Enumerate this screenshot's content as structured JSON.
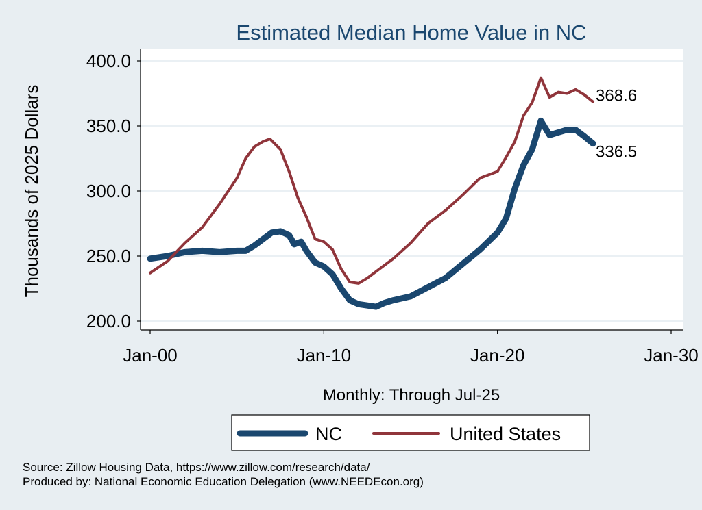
{
  "chart_data": {
    "type": "line",
    "title": "Estimated Median Home Value in NC",
    "xlabel": "Monthly: Through Jul-25",
    "ylabel": "Thousands of 2025 Dollars",
    "xlim": [
      2000,
      2030
    ],
    "ylim": [
      200,
      400
    ],
    "x_ticks": [
      2000,
      2010,
      2020,
      2030
    ],
    "x_tick_labels": [
      "Jan-00",
      "Jan-10",
      "Jan-20",
      "Jan-30"
    ],
    "y_ticks": [
      200,
      250,
      300,
      350,
      400
    ],
    "y_tick_labels": [
      "200.0",
      "250.0",
      "300.0",
      "350.0",
      "400.0"
    ],
    "grid": true,
    "legend_position": "bottom",
    "series": [
      {
        "name": "NC",
        "color": "#1a476f",
        "points": [
          [
            2000.0,
            248
          ],
          [
            2001.0,
            250
          ],
          [
            2002.0,
            253
          ],
          [
            2003.0,
            254
          ],
          [
            2004.0,
            253
          ],
          [
            2005.0,
            254
          ],
          [
            2005.5,
            254
          ],
          [
            2006.0,
            258
          ],
          [
            2006.5,
            263
          ],
          [
            2007.0,
            268
          ],
          [
            2007.5,
            269
          ],
          [
            2008.0,
            266
          ],
          [
            2008.3,
            259
          ],
          [
            2008.7,
            261
          ],
          [
            2009.0,
            254
          ],
          [
            2009.5,
            245
          ],
          [
            2010.0,
            242
          ],
          [
            2010.5,
            236
          ],
          [
            2011.0,
            225
          ],
          [
            2011.5,
            216
          ],
          [
            2012.0,
            213
          ],
          [
            2012.5,
            212
          ],
          [
            2013.0,
            211
          ],
          [
            2013.5,
            214
          ],
          [
            2014.0,
            216
          ],
          [
            2015.0,
            219
          ],
          [
            2016.0,
            226
          ],
          [
            2017.0,
            233
          ],
          [
            2018.0,
            244
          ],
          [
            2019.0,
            255
          ],
          [
            2020.0,
            268
          ],
          [
            2020.5,
            279
          ],
          [
            2021.0,
            302
          ],
          [
            2021.5,
            320
          ],
          [
            2022.0,
            332
          ],
          [
            2022.5,
            354
          ],
          [
            2023.0,
            343
          ],
          [
            2023.5,
            345
          ],
          [
            2024.0,
            347
          ],
          [
            2024.5,
            347
          ],
          [
            2025.0,
            342
          ],
          [
            2025.5,
            336.5
          ]
        ]
      },
      {
        "name": "United States",
        "color": "#90353b",
        "points": [
          [
            2000.0,
            237
          ],
          [
            2001.0,
            246
          ],
          [
            2002.0,
            260
          ],
          [
            2003.0,
            272
          ],
          [
            2004.0,
            290
          ],
          [
            2005.0,
            310
          ],
          [
            2005.5,
            325
          ],
          [
            2006.0,
            334
          ],
          [
            2006.5,
            338
          ],
          [
            2006.9,
            340
          ],
          [
            2007.5,
            332
          ],
          [
            2008.0,
            315
          ],
          [
            2008.5,
            295
          ],
          [
            2009.0,
            280
          ],
          [
            2009.5,
            263
          ],
          [
            2010.0,
            261
          ],
          [
            2010.5,
            255
          ],
          [
            2011.0,
            240
          ],
          [
            2011.5,
            230
          ],
          [
            2012.0,
            229
          ],
          [
            2012.5,
            233
          ],
          [
            2013.0,
            238
          ],
          [
            2014.0,
            248
          ],
          [
            2015.0,
            260
          ],
          [
            2016.0,
            275
          ],
          [
            2017.0,
            285
          ],
          [
            2018.0,
            297
          ],
          [
            2019.0,
            310
          ],
          [
            2020.0,
            315
          ],
          [
            2020.5,
            326
          ],
          [
            2021.0,
            338
          ],
          [
            2021.5,
            358
          ],
          [
            2022.0,
            368
          ],
          [
            2022.5,
            387
          ],
          [
            2023.0,
            372
          ],
          [
            2023.5,
            376
          ],
          [
            2024.0,
            375
          ],
          [
            2024.5,
            378
          ],
          [
            2025.0,
            374
          ],
          [
            2025.5,
            368.6
          ]
        ]
      }
    ],
    "end_labels": [
      {
        "series": "United States",
        "text": "368.6"
      },
      {
        "series": "NC",
        "text": "336.5"
      }
    ]
  },
  "source_line": "Source: Zillow Housing Data, https://www.zillow.com/research/data/",
  "produced_line": "Produced by: National Economic Education Delegation (www.NEEDEcon.org)"
}
